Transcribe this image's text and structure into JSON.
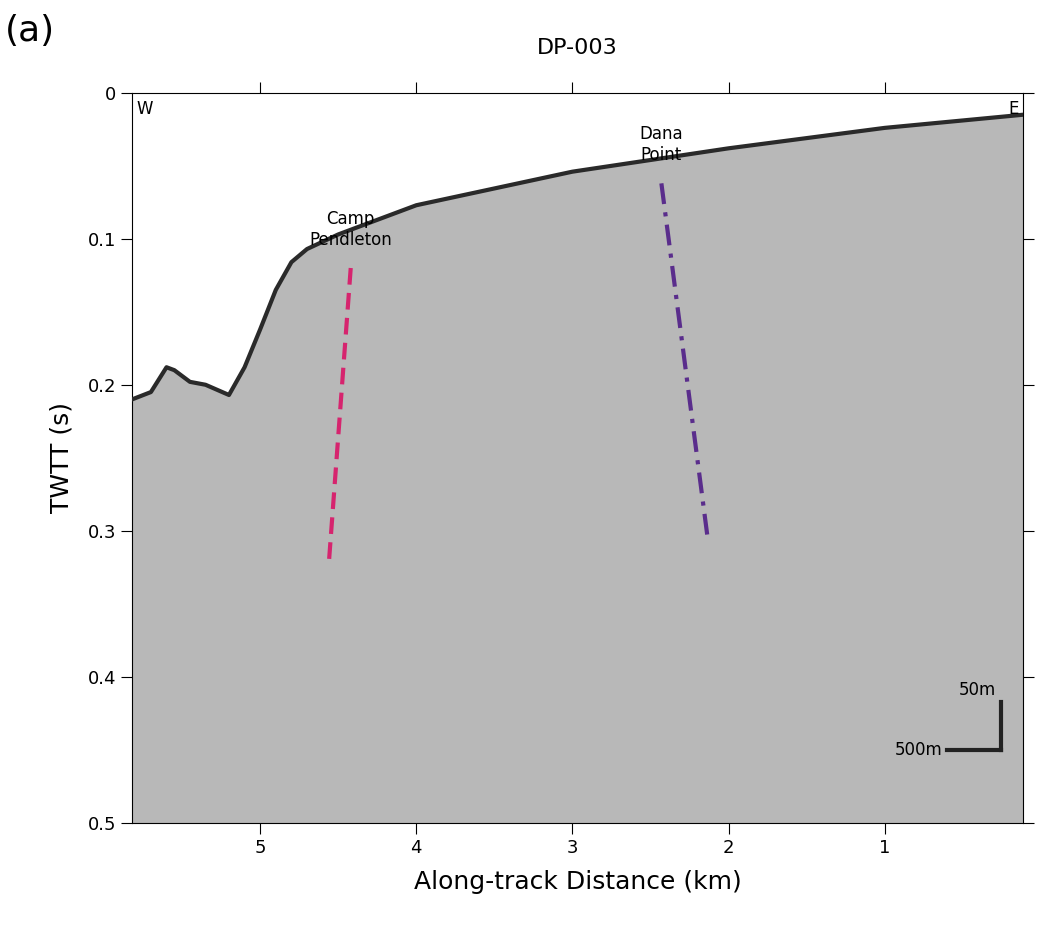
{
  "chart_data": {
    "type": "line",
    "title": "DP-003",
    "panel_label": "(a)",
    "x_label": "Along-track Distance (km)",
    "y_label": "TWTT (s)",
    "west_label": "W",
    "east_label": "E",
    "x": [
      0.115,
      1.0,
      2.0,
      3.0,
      4.0,
      4.5,
      4.7,
      4.8,
      4.9,
      5.0,
      5.1,
      5.2,
      5.35,
      5.45,
      5.55,
      5.6,
      5.7,
      5.82
    ],
    "values": [
      0.015,
      0.024,
      0.038,
      0.054,
      0.077,
      0.097,
      0.107,
      0.116,
      0.135,
      0.162,
      0.188,
      0.207,
      0.2,
      0.198,
      0.19,
      0.188,
      0.205,
      0.21
    ],
    "color": "#2a2a2a",
    "annotations": [
      {
        "text": "Camp\nPendleton",
        "x": [
          4.42,
          4.56
        ],
        "y": [
          0.12,
          0.322
        ],
        "color": "#d6246e",
        "line_style": "dashed"
      },
      {
        "text": "Dana\nPoint",
        "x": [
          2.43,
          2.13
        ],
        "y": [
          0.062,
          0.308
        ],
        "color": "#5a2d8c",
        "line_style": "dashdot"
      }
    ],
    "scale_bar": {
      "x_label": "500m",
      "y_label": "50m"
    },
    "xlim": [
      5.82,
      0.115
    ],
    "xticks": [
      5,
      4,
      3,
      2,
      1
    ],
    "ylim": [
      0.5,
      0
    ],
    "yticks": [
      0,
      0.1,
      0.2,
      0.3,
      0.4,
      0.5
    ],
    "grid": false
  }
}
